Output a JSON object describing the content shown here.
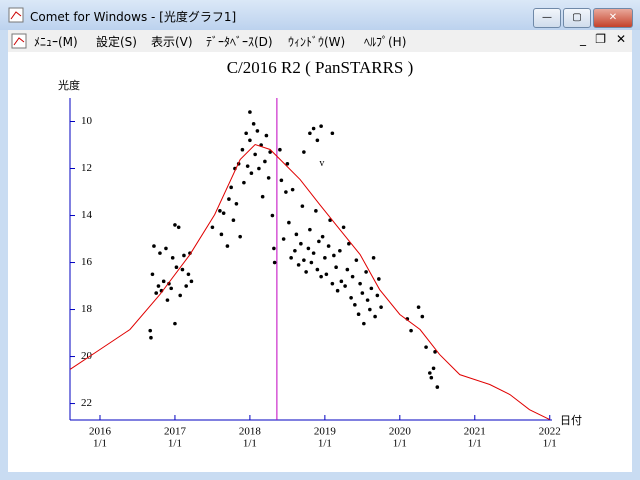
{
  "window": {
    "title": "Comet for Windows - [光度グラフ1]",
    "menu": [
      "ﾒﾆｭｰ(M)",
      "設定(S)",
      "表示(V)",
      "ﾃﾞｰﾀﾍﾞｰｽ(D)",
      "ｳｨﾝﾄﾞｳ(W)",
      "ﾍﾙﾌﾟ(H)"
    ]
  },
  "chart_data": {
    "type": "scatter",
    "title": "C/2016 R2 ( PanSTARRS )",
    "y_label": "光度",
    "x_label": "日付",
    "annotation": "v",
    "xlim": [
      2015.6,
      2022.03
    ],
    "ylim": [
      22.7,
      9.0
    ],
    "xticks": [
      {
        "value": 2016,
        "label": "2016"
      },
      {
        "value": 2017,
        "label": "2017"
      },
      {
        "value": 2018,
        "label": "2018"
      },
      {
        "value": 2019,
        "label": "2019"
      },
      {
        "value": 2020,
        "label": "2020"
      },
      {
        "value": 2021,
        "label": "2021"
      },
      {
        "value": 2022,
        "label": "2022"
      }
    ],
    "xtick_sublabels": [
      "1/1",
      "1/1",
      "1/1",
      "1/1",
      "1/1",
      "1/1",
      "1/1"
    ],
    "yticks": [
      10,
      12,
      14,
      16,
      18,
      20,
      22
    ],
    "marker_x": 2018.36,
    "marker_color": "#c000c0",
    "axis_color": "#0000c0",
    "series": [
      {
        "type": "scatter",
        "color": "#000000",
        "x": [
          2016.67,
          2016.68,
          2016.7,
          2016.72,
          2016.75,
          2016.78,
          2016.8,
          2016.82,
          2016.85,
          2016.88,
          2016.9,
          2016.92,
          2016.95,
          2016.97,
          2017.0,
          2017.0,
          2017.02,
          2017.05,
          2017.07,
          2017.1,
          2017.12,
          2017.15,
          2017.18,
          2017.2,
          2017.22,
          2017.5,
          2017.6,
          2017.62,
          2017.65,
          2017.7,
          2017.72,
          2017.75,
          2017.78,
          2017.8,
          2017.82,
          2017.85,
          2017.87,
          2017.9,
          2017.92,
          2017.95,
          2017.97,
          2018.0,
          2018.0,
          2018.02,
          2018.05,
          2018.07,
          2018.1,
          2018.12,
          2018.15,
          2018.17,
          2018.2,
          2018.22,
          2018.25,
          2018.27,
          2018.3,
          2018.32,
          2018.33,
          2018.4,
          2018.42,
          2018.45,
          2018.48,
          2018.5,
          2018.52,
          2018.55,
          2018.57,
          2018.6,
          2018.62,
          2018.65,
          2018.68,
          2018.7,
          2018.72,
          2018.75,
          2018.78,
          2018.8,
          2018.82,
          2018.85,
          2018.88,
          2018.9,
          2018.92,
          2018.95,
          2018.97,
          2019.0,
          2019.02,
          2019.05,
          2019.07,
          2019.1,
          2019.12,
          2019.15,
          2019.17,
          2019.2,
          2019.22,
          2019.25,
          2019.27,
          2019.3,
          2019.32,
          2019.35,
          2019.37,
          2019.4,
          2019.42,
          2019.45,
          2019.47,
          2019.5,
          2019.52,
          2019.55,
          2019.57,
          2019.6,
          2019.62,
          2019.65,
          2019.67,
          2019.7,
          2019.72,
          2019.75,
          2018.8,
          2018.85,
          2018.9,
          2018.95,
          2019.1,
          2018.72,
          2020.1,
          2020.15,
          2020.25,
          2020.3,
          2020.35,
          2020.4,
          2020.42,
          2020.45,
          2020.47,
          2020.5
        ],
        "values": [
          18.9,
          19.2,
          16.5,
          15.3,
          17.3,
          17.0,
          15.6,
          17.2,
          16.8,
          15.4,
          17.6,
          16.9,
          17.1,
          15.8,
          14.4,
          18.6,
          16.2,
          14.5,
          17.4,
          16.3,
          15.7,
          17.0,
          16.5,
          15.6,
          16.8,
          14.5,
          13.8,
          14.8,
          13.9,
          15.3,
          13.3,
          12.8,
          14.2,
          12.0,
          13.5,
          11.8,
          14.9,
          11.2,
          12.6,
          10.5,
          11.9,
          9.6,
          10.8,
          12.2,
          10.1,
          11.4,
          10.4,
          12.0,
          11.0,
          13.2,
          11.7,
          10.6,
          12.4,
          11.3,
          14.0,
          15.4,
          16.0,
          11.2,
          12.5,
          15.0,
          13.0,
          11.8,
          14.3,
          15.8,
          12.9,
          15.5,
          14.8,
          16.1,
          15.2,
          13.6,
          15.9,
          16.4,
          15.4,
          14.6,
          16.0,
          15.6,
          13.8,
          16.3,
          15.1,
          16.6,
          14.9,
          15.8,
          16.5,
          15.3,
          14.2,
          16.9,
          15.7,
          16.2,
          17.2,
          15.5,
          16.8,
          14.5,
          17.0,
          16.3,
          15.2,
          17.5,
          16.6,
          17.8,
          15.9,
          18.2,
          16.9,
          17.3,
          18.6,
          16.4,
          17.6,
          18.0,
          17.1,
          15.8,
          18.3,
          17.4,
          16.7,
          17.9,
          10.5,
          10.3,
          10.8,
          10.2,
          10.5,
          11.3,
          18.4,
          18.9,
          17.9,
          18.3,
          19.6,
          20.7,
          20.9,
          20.5,
          19.8,
          21.3
        ]
      },
      {
        "type": "line",
        "color": "#e00000",
        "x": [
          2015.6,
          2016.0,
          2016.4,
          2016.8,
          2017.2,
          2017.53,
          2017.87,
          2018.07,
          2018.27,
          2018.47,
          2018.67,
          2018.93,
          2019.2,
          2019.47,
          2019.73,
          2020.0,
          2020.27,
          2020.53,
          2020.8,
          2021.2,
          2021.47,
          2021.73,
          2022.0
        ],
        "values": [
          20.55,
          19.7,
          18.85,
          17.36,
          15.66,
          13.96,
          11.62,
          10.98,
          11.19,
          11.83,
          12.47,
          13.53,
          14.6,
          15.66,
          17.15,
          18.21,
          18.85,
          19.91,
          20.77,
          21.19,
          21.62,
          22.26,
          22.68
        ]
      }
    ]
  }
}
